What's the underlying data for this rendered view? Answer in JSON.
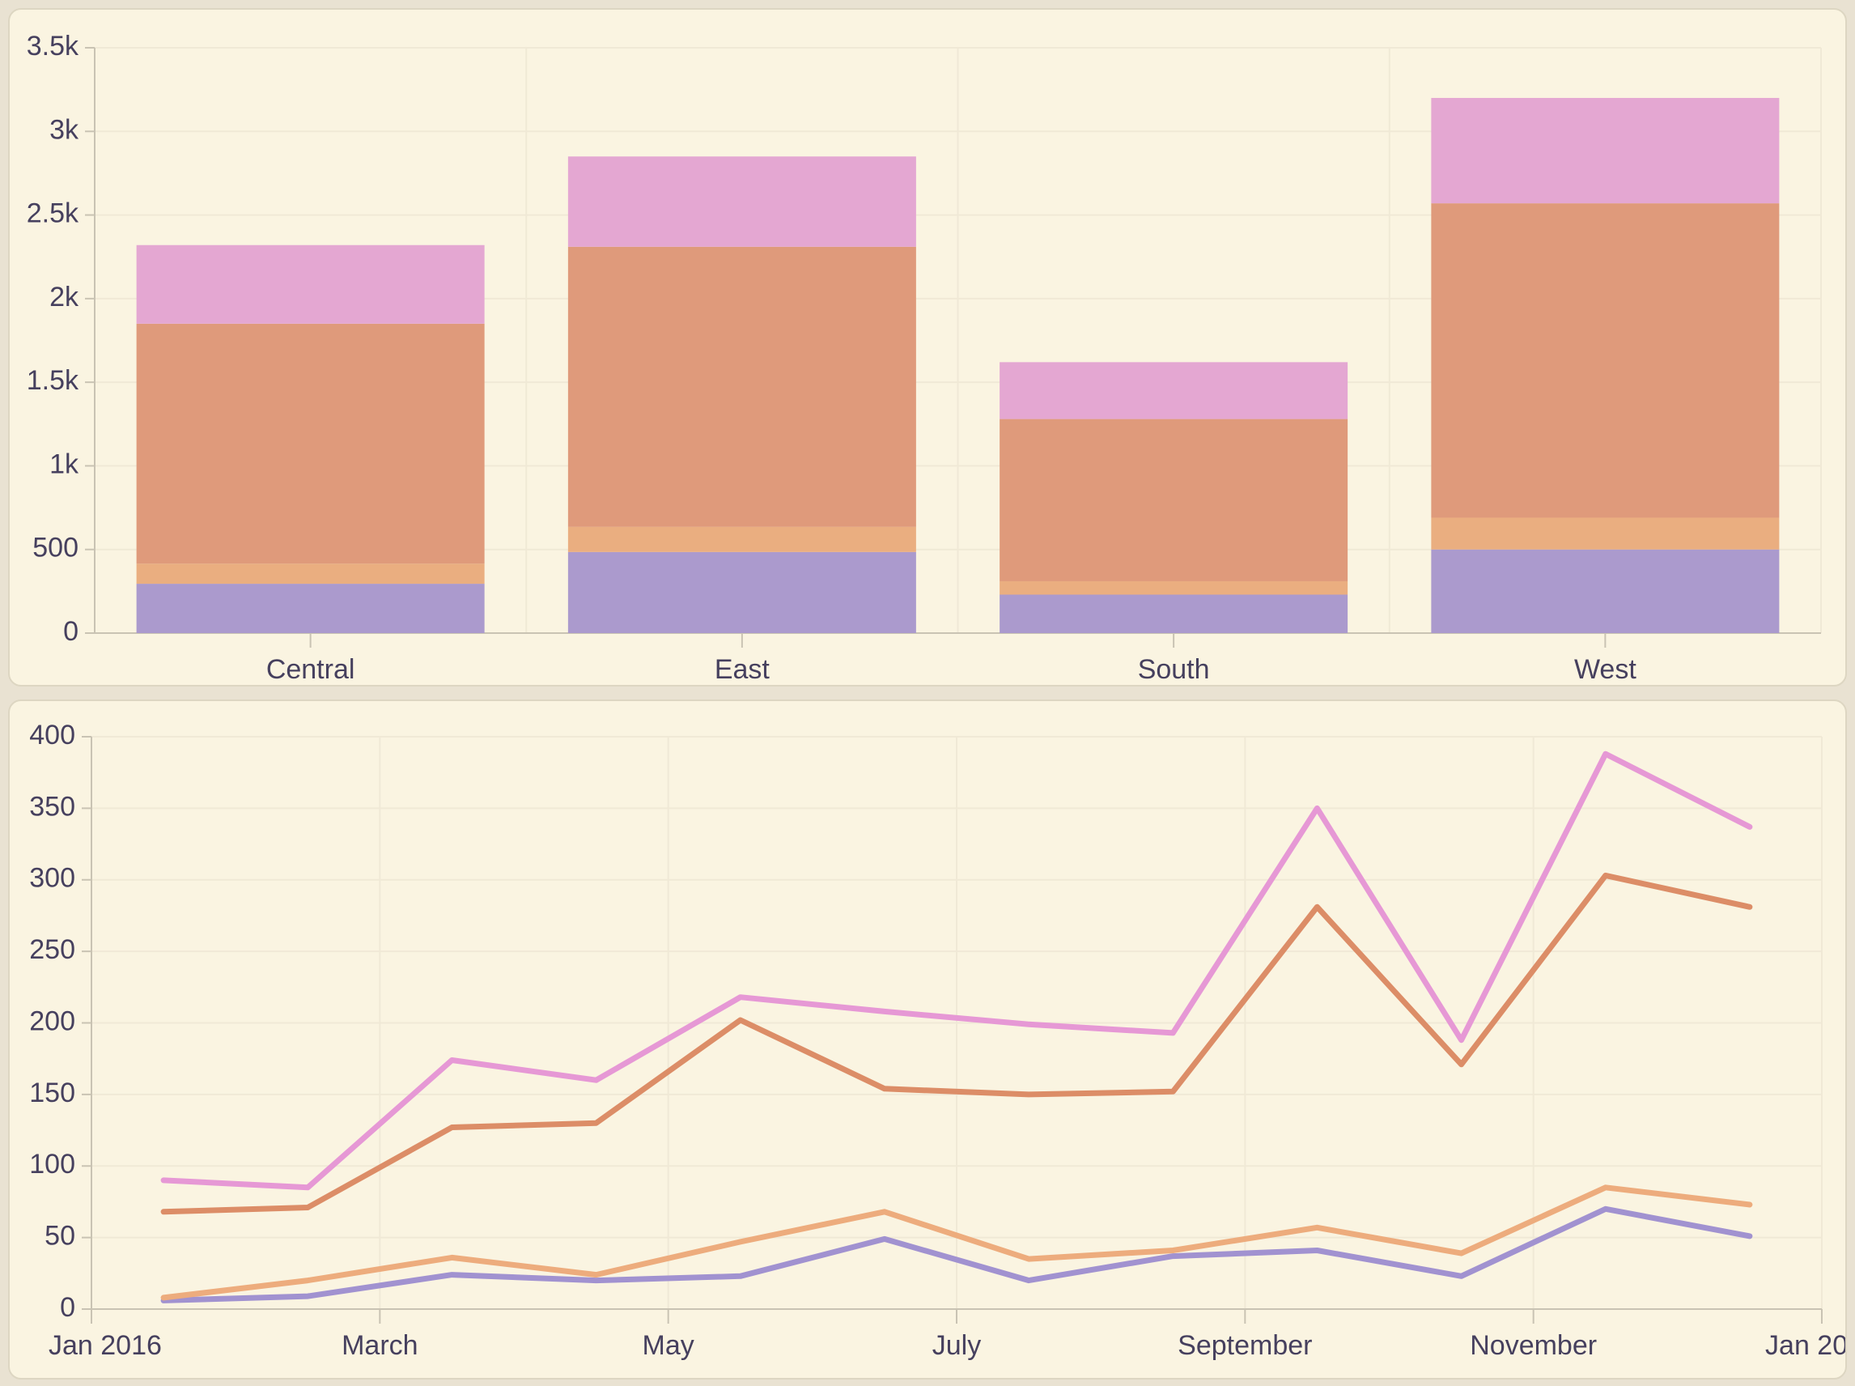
{
  "page": {
    "background_color": "#e9e2d2",
    "card_color": "#faf4e1",
    "text_color": "#46405e",
    "gridline_color": "#f0e9d6",
    "axisline_color": "#c9c3b3"
  },
  "chart_data": [
    {
      "type": "bar",
      "stacked": true,
      "title": "",
      "xlabel": "",
      "ylabel": "",
      "categories": [
        "Central",
        "East",
        "South",
        "West"
      ],
      "series": [
        {
          "name": "series-1-purple",
          "color": "#ab9acd",
          "values": [
            295,
            485,
            230,
            500
          ]
        },
        {
          "name": "series-2-tan",
          "color": "#eaae80",
          "values": [
            120,
            150,
            80,
            190
          ]
        },
        {
          "name": "series-3-salmon",
          "color": "#df9a7b",
          "values": [
            1435,
            1675,
            970,
            1880
          ]
        },
        {
          "name": "series-4-pink",
          "color": "#e4a7d2",
          "values": [
            470,
            540,
            340,
            630
          ]
        }
      ],
      "stack_totals": [
        2320,
        2850,
        1620,
        3200
      ],
      "ylim": [
        0,
        3500
      ],
      "ytick_interval": 500,
      "ytick_labels": [
        "0",
        "500",
        "1k",
        "1.5k",
        "2k",
        "2.5k",
        "3k",
        "3.5k"
      ],
      "grid": true,
      "legend": false
    },
    {
      "type": "line",
      "title": "",
      "xlabel": "",
      "ylabel": "",
      "x_points": [
        "Jan 2016",
        "Feb 2016",
        "Mar 2016",
        "Apr 2016",
        "May 2016",
        "Jun 2016",
        "Jul 2016",
        "Aug 2016",
        "Sep 2016",
        "Oct 2016",
        "Nov 2016",
        "Dec 2016"
      ],
      "xtick_labels": [
        "Jan 2016",
        "March",
        "May",
        "July",
        "September",
        "November",
        "Jan 2017"
      ],
      "series": [
        {
          "name": "series-1-purple",
          "color": "#a192d0",
          "values": [
            6,
            9,
            24,
            20,
            23,
            49,
            20,
            37,
            41,
            23,
            70,
            51
          ]
        },
        {
          "name": "series-2-tan",
          "color": "#edac7d",
          "values": [
            8,
            20,
            36,
            24,
            47,
            68,
            35,
            41,
            57,
            39,
            85,
            73
          ]
        },
        {
          "name": "series-3-coral",
          "color": "#dc8d67",
          "values": [
            68,
            71,
            127,
            130,
            202,
            154,
            150,
            152,
            281,
            171,
            303,
            281
          ]
        },
        {
          "name": "series-4-violet",
          "color": "#e698d5",
          "values": [
            90,
            85,
            174,
            160,
            218,
            208,
            199,
            193,
            350,
            188,
            388,
            337
          ]
        }
      ],
      "ylim": [
        0,
        400
      ],
      "ytick_interval": 50,
      "ytick_labels": [
        "0",
        "50",
        "100",
        "150",
        "200",
        "250",
        "300",
        "350",
        "400"
      ],
      "grid": true,
      "legend": false
    }
  ]
}
